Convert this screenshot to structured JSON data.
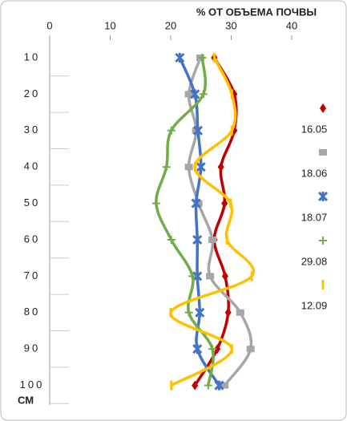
{
  "chart_data": {
    "type": "line",
    "orientation": "vertical-profile",
    "x_label": "% ОТ ОБЪЕМА ПОЧВЫ",
    "y_label": "СМ",
    "categories": [
      "10",
      "20",
      "30",
      "40",
      "50",
      "60",
      "70",
      "80",
      "90",
      "100"
    ],
    "xlim": [
      0,
      40
    ],
    "xticks": [
      0,
      10,
      20,
      30,
      40
    ],
    "smooth": true,
    "series": [
      {
        "name": "16.05",
        "color": "#c00000",
        "marker": "diamond",
        "values": [
          27.2,
          30.5,
          30.5,
          28.3,
          28.9,
          27.2,
          29,
          29.5,
          27.7,
          24
        ]
      },
      {
        "name": "18.06",
        "color": "#a6a6a6",
        "marker": "square",
        "values": [
          24.9,
          23,
          24.2,
          23,
          24.6,
          26.9,
          26.5,
          31.5,
          33.2,
          28.9
        ]
      },
      {
        "name": "18.07",
        "color": "#4472c4",
        "marker": "star",
        "values": [
          21.5,
          24,
          24.5,
          25,
          24.2,
          24.4,
          24.4,
          24.8,
          24.4,
          28
        ]
      },
      {
        "name": "29.08",
        "color": "#70ad47",
        "marker": "plus",
        "values": [
          25.2,
          25.4,
          20.1,
          19.3,
          17.6,
          20.1,
          23.6,
          23,
          26.9,
          26.2
        ]
      },
      {
        "name": "12.09",
        "color": "#ffc000",
        "marker": "dash",
        "values": [
          27.2,
          30.1,
          30.1,
          24,
          29.9,
          29.3,
          33.4,
          20,
          30.1,
          20.1
        ]
      }
    ]
  }
}
